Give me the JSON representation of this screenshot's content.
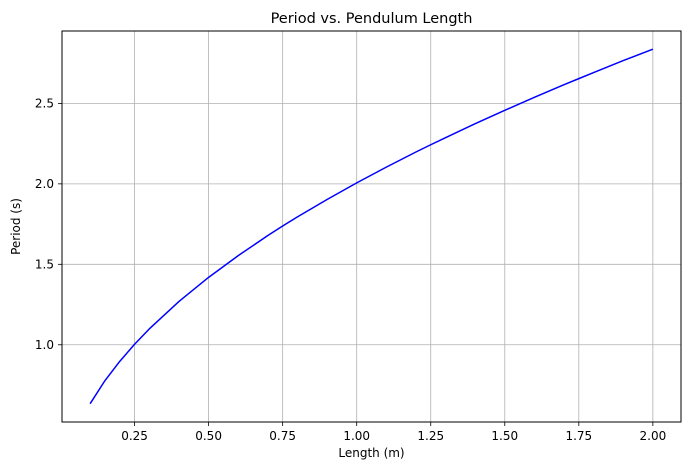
{
  "chart_data": {
    "type": "line",
    "title": "Period vs. Pendulum Length",
    "xlabel": "Length (m)",
    "ylabel": "Period (s)",
    "xlim": [
      0.005,
      2.095
    ],
    "ylim": [
      0.52,
      2.95
    ],
    "x_ticks": [
      0.25,
      0.5,
      0.75,
      1.0,
      1.25,
      1.5,
      1.75,
      2.0
    ],
    "x_tick_labels": [
      "0.25",
      "0.50",
      "0.75",
      "1.00",
      "1.25",
      "1.50",
      "1.75",
      "2.00"
    ],
    "y_ticks": [
      1.0,
      1.5,
      2.0,
      2.5
    ],
    "y_tick_labels": [
      "1.0",
      "1.5",
      "2.0",
      "2.5"
    ],
    "grid": true,
    "series": [
      {
        "color": "#0000ff",
        "x": [
          0.1,
          0.15,
          0.2,
          0.25,
          0.3,
          0.4,
          0.5,
          0.6,
          0.7,
          0.75,
          0.8,
          0.9,
          1.0,
          1.1,
          1.2,
          1.25,
          1.3,
          1.4,
          1.5,
          1.6,
          1.7,
          1.75,
          1.8,
          1.9,
          2.0
        ],
        "y": [
          0.634,
          0.777,
          0.897,
          1.003,
          1.099,
          1.269,
          1.419,
          1.554,
          1.679,
          1.738,
          1.795,
          1.903,
          2.006,
          2.104,
          2.198,
          2.243,
          2.287,
          2.374,
          2.457,
          2.538,
          2.616,
          2.654,
          2.692,
          2.766,
          2.837
        ]
      }
    ]
  },
  "colors": {
    "line": "#0000ff",
    "grid": "#b0b0b0",
    "axes": "#000000"
  }
}
